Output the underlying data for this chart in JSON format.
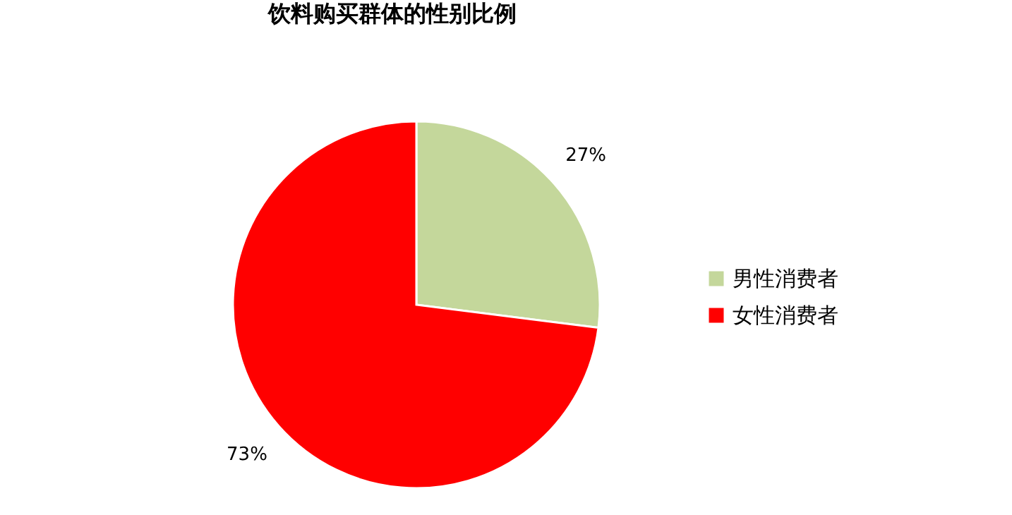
{
  "chart_data": {
    "type": "pie",
    "title": "饮料购买群体的性别比例",
    "categories": [
      "男性消费者",
      "女性消费者"
    ],
    "values": [
      27,
      73
    ],
    "colors": [
      "#c4d79b",
      "#ff0000"
    ],
    "value_labels": [
      "27%",
      "73%"
    ],
    "legend": "right"
  }
}
